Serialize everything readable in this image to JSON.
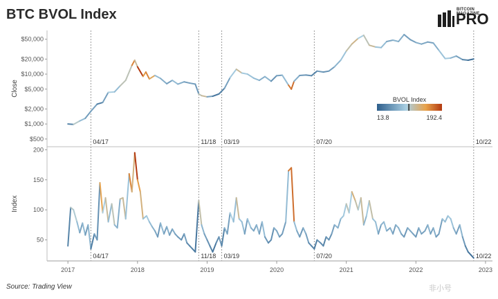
{
  "header": {
    "title": "BTC BVOL Index",
    "brand_small": "BITCOIN MAGAZINE",
    "brand_big": "PRO"
  },
  "footer": {
    "source": "Source: Trading View",
    "watermark": "非小号"
  },
  "colors": {
    "low": "#2e5f8c",
    "mid": "#a9cfe3",
    "high": "#e8a24a",
    "top": "#b33a10",
    "grid": "#d0d0d0",
    "event_line": "#9a9a9a"
  },
  "legend": {
    "title": "BVOL Index",
    "min_label": "13.8",
    "max_label": "192.4",
    "marker_value": 100
  },
  "chart_data": [
    {
      "type": "line",
      "ylabel": "Close",
      "yscale": "log",
      "ylim": [
        350,
        75000
      ],
      "yticks": [
        500,
        1000,
        2000,
        5000,
        10000,
        20000,
        50000
      ],
      "ytick_labels": [
        "$500",
        "$1,000",
        "$2,000",
        "$5,000",
        "$10,000",
        "$20,000",
        "$50,000"
      ],
      "x": [
        2017.0,
        2017.08,
        2017.17,
        2017.25,
        2017.33,
        2017.42,
        2017.5,
        2017.58,
        2017.67,
        2017.75,
        2017.83,
        2017.92,
        2017.96,
        2018.0,
        2018.08,
        2018.12,
        2018.17,
        2018.25,
        2018.33,
        2018.42,
        2018.5,
        2018.58,
        2018.67,
        2018.75,
        2018.83,
        2018.88,
        2018.92,
        2019.0,
        2019.08,
        2019.17,
        2019.25,
        2019.33,
        2019.42,
        2019.5,
        2019.58,
        2019.67,
        2019.75,
        2019.83,
        2019.92,
        2020.0,
        2020.08,
        2020.17,
        2020.21,
        2020.25,
        2020.33,
        2020.42,
        2020.5,
        2020.58,
        2020.67,
        2020.75,
        2020.83,
        2020.92,
        2021.0,
        2021.08,
        2021.17,
        2021.25,
        2021.33,
        2021.42,
        2021.5,
        2021.58,
        2021.67,
        2021.75,
        2021.83,
        2021.92,
        2022.0,
        2022.08,
        2022.17,
        2022.25,
        2022.33,
        2022.42,
        2022.5,
        2022.58,
        2022.67,
        2022.75,
        2022.83
      ],
      "values": [
        1000,
        980,
        1150,
        1300,
        1800,
        2500,
        2700,
        4300,
        4400,
        5800,
        7500,
        15000,
        19000,
        14000,
        9000,
        11000,
        8000,
        9400,
        8200,
        6400,
        7500,
        6300,
        7000,
        6600,
        6300,
        4000,
        3700,
        3500,
        3600,
        4000,
        5200,
        8500,
        12500,
        10500,
        10000,
        8300,
        7500,
        8900,
        7200,
        9300,
        9500,
        6000,
        5000,
        7200,
        9400,
        9600,
        9300,
        11500,
        11000,
        11500,
        14000,
        19000,
        29000,
        40000,
        52000,
        60000,
        38000,
        35000,
        34000,
        45000,
        48000,
        45000,
        62000,
        49000,
        43000,
        40000,
        44000,
        42000,
        30000,
        20500,
        21000,
        23000,
        19500,
        19000,
        20100
      ],
      "bvol": [
        40,
        104,
        80,
        58,
        60,
        35,
        60,
        95,
        80,
        110,
        110,
        160,
        120,
        195,
        150,
        160,
        140,
        80,
        70,
        60,
        80,
        70,
        60,
        60,
        55,
        110,
        120,
        60,
        30,
        40,
        60,
        90,
        120,
        90,
        85,
        80,
        70,
        75,
        50,
        60,
        80,
        165,
        170,
        70,
        55,
        50,
        40,
        55,
        50,
        60,
        75,
        85,
        115,
        125,
        95,
        110,
        120,
        85,
        80,
        65,
        75,
        70,
        60,
        60,
        70,
        65,
        60,
        70,
        85,
        90,
        75,
        60,
        40,
        25,
        20
      ],
      "events": [
        {
          "x": 2017.33,
          "label": "04/17"
        },
        {
          "x": 2018.88,
          "label": "11/18"
        },
        {
          "x": 2019.21,
          "label": "03/19"
        },
        {
          "x": 2020.54,
          "label": "07/20"
        },
        {
          "x": 2022.83,
          "label": "10/22"
        }
      ]
    },
    {
      "type": "line",
      "ylabel": "Index",
      "ylim": [
        15,
        205
      ],
      "yticks": [
        50,
        100,
        150,
        200
      ],
      "ytick_labels": [
        "50",
        "100",
        "150",
        "200"
      ],
      "xlim": [
        2016.7,
        2023.1
      ],
      "xticks": [
        2017,
        2018,
        2019,
        2020,
        2021,
        2022,
        2023
      ],
      "xtick_labels": [
        "2017",
        "2018",
        "2019",
        "2020",
        "2021",
        "2022",
        "2023"
      ],
      "x": [
        2017.0,
        2017.04,
        2017.08,
        2017.13,
        2017.17,
        2017.21,
        2017.25,
        2017.29,
        2017.33,
        2017.38,
        2017.42,
        2017.46,
        2017.5,
        2017.54,
        2017.58,
        2017.63,
        2017.67,
        2017.71,
        2017.75,
        2017.79,
        2017.83,
        2017.88,
        2017.92,
        2017.96,
        2018.0,
        2018.04,
        2018.08,
        2018.13,
        2018.17,
        2018.21,
        2018.25,
        2018.29,
        2018.33,
        2018.38,
        2018.42,
        2018.46,
        2018.5,
        2018.54,
        2018.58,
        2018.63,
        2018.67,
        2018.71,
        2018.75,
        2018.79,
        2018.83,
        2018.88,
        2018.92,
        2018.96,
        2019.0,
        2019.04,
        2019.08,
        2019.13,
        2019.17,
        2019.21,
        2019.25,
        2019.29,
        2019.33,
        2019.38,
        2019.42,
        2019.46,
        2019.5,
        2019.54,
        2019.58,
        2019.63,
        2019.67,
        2019.71,
        2019.75,
        2019.79,
        2019.83,
        2019.88,
        2019.92,
        2019.96,
        2020.0,
        2020.04,
        2020.08,
        2020.13,
        2020.17,
        2020.21,
        2020.25,
        2020.29,
        2020.33,
        2020.38,
        2020.42,
        2020.46,
        2020.5,
        2020.54,
        2020.58,
        2020.63,
        2020.67,
        2020.71,
        2020.75,
        2020.79,
        2020.83,
        2020.88,
        2020.92,
        2020.96,
        2021.0,
        2021.04,
        2021.08,
        2021.13,
        2021.17,
        2021.21,
        2021.25,
        2021.29,
        2021.33,
        2021.38,
        2021.42,
        2021.46,
        2021.5,
        2021.54,
        2021.58,
        2021.63,
        2021.67,
        2021.71,
        2021.75,
        2021.79,
        2021.83,
        2021.88,
        2021.92,
        2021.96,
        2022.0,
        2022.04,
        2022.08,
        2022.13,
        2022.17,
        2022.21,
        2022.25,
        2022.29,
        2022.33,
        2022.38,
        2022.42,
        2022.46,
        2022.5,
        2022.54,
        2022.58,
        2022.63,
        2022.67,
        2022.71,
        2022.75,
        2022.79,
        2022.83
      ],
      "values": [
        40,
        104,
        100,
        80,
        62,
        78,
        58,
        75,
        35,
        60,
        50,
        145,
        95,
        120,
        80,
        110,
        75,
        70,
        118,
        120,
        85,
        160,
        130,
        195,
        150,
        130,
        85,
        90,
        80,
        72,
        65,
        55,
        78,
        60,
        72,
        58,
        68,
        60,
        55,
        50,
        60,
        45,
        40,
        35,
        30,
        115,
        75,
        60,
        50,
        40,
        30,
        45,
        55,
        40,
        70,
        60,
        95,
        80,
        120,
        85,
        80,
        60,
        85,
        70,
        65,
        75,
        60,
        80,
        55,
        45,
        50,
        70,
        65,
        55,
        60,
        80,
        165,
        170,
        80,
        65,
        55,
        70,
        60,
        45,
        40,
        35,
        50,
        45,
        40,
        55,
        50,
        60,
        75,
        70,
        85,
        90,
        110,
        95,
        130,
        115,
        100,
        120,
        75,
        90,
        115,
        85,
        80,
        60,
        75,
        80,
        65,
        70,
        60,
        75,
        70,
        60,
        55,
        70,
        65,
        60,
        55,
        70,
        60,
        65,
        75,
        60,
        70,
        55,
        60,
        85,
        80,
        90,
        85,
        70,
        60,
        75,
        55,
        40,
        30,
        25,
        20
      ],
      "events": [
        {
          "x": 2017.33,
          "label": "04/17"
        },
        {
          "x": 2018.88,
          "label": "11/18"
        },
        {
          "x": 2019.21,
          "label": "03/19"
        },
        {
          "x": 2020.54,
          "label": "07/20"
        },
        {
          "x": 2022.83,
          "label": "10/22"
        }
      ]
    }
  ]
}
